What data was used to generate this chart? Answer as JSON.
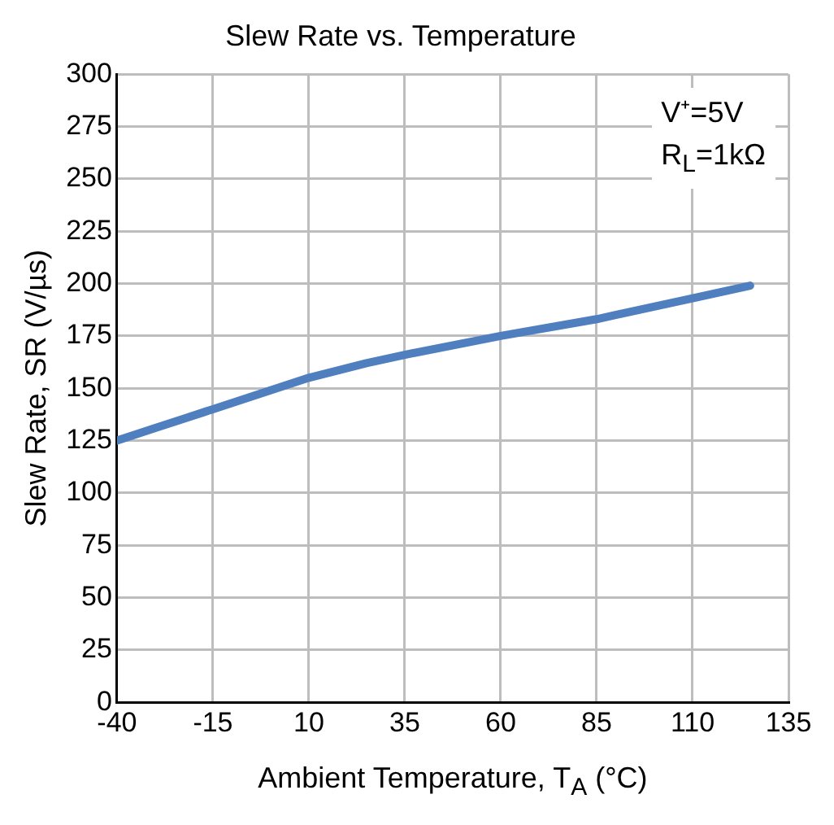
{
  "chart_data": {
    "type": "line",
    "title": "Slew Rate vs. Temperature",
    "xlabel": "Ambient Temperature, T$_{A}$ (°C)",
    "ylabel": "Slew Rate, SR (V/µs)",
    "x": [
      -40,
      -30,
      -15,
      0,
      10,
      25,
      35,
      60,
      85,
      110,
      125
    ],
    "series": [
      {
        "color": "#4f7fbf",
        "values": [
          125,
          131,
          140,
          149,
          155,
          162,
          166,
          175,
          183,
          193,
          199
        ]
      }
    ],
    "xlim": [
      -40,
      135
    ],
    "xticks": [
      -40,
      -15,
      10,
      35,
      60,
      85,
      110,
      135
    ],
    "ylim": [
      0,
      300
    ],
    "yticks": [
      0,
      25,
      50,
      75,
      100,
      125,
      150,
      175,
      200,
      225,
      250,
      275,
      300
    ],
    "grid": true,
    "legend": false,
    "marker": "none",
    "line_style": "solid",
    "annotations": [
      "V⁺=5V",
      "R$_{L}$=1kΩ"
    ]
  }
}
